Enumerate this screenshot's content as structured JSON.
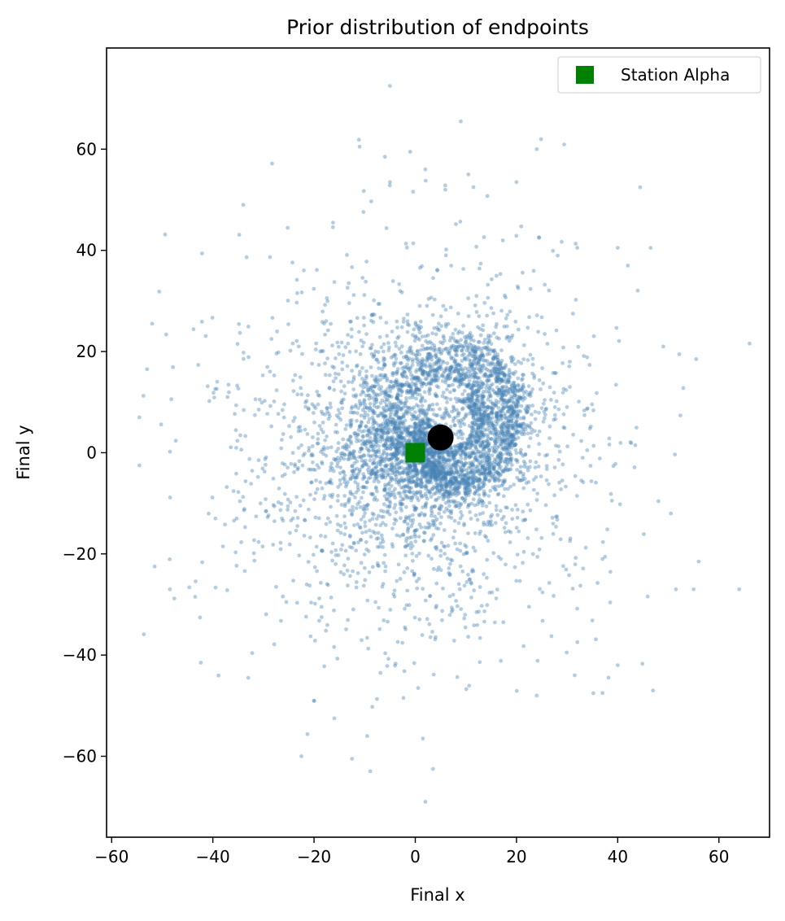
{
  "chart_data": {
    "type": "scatter",
    "title": "Prior distribution of endpoints",
    "xlabel": "Final x",
    "ylabel": "Final y",
    "xlim": [
      -61,
      70
    ],
    "ylim": [
      -76,
      80
    ],
    "xticks": [
      -60,
      -40,
      -20,
      0,
      20,
      40,
      60
    ],
    "yticks": [
      -60,
      -40,
      -20,
      0,
      20,
      40,
      60
    ],
    "xtick_labels": [
      "−60",
      "−40",
      "−20",
      "0",
      "20",
      "40",
      "60"
    ],
    "ytick_labels": [
      "−60",
      "−40",
      "−20",
      "0",
      "20",
      "40",
      "60"
    ],
    "grid": false,
    "legend": {
      "placement": "top-right",
      "entries": [
        {
          "label": "Station Alpha",
          "marker": "square",
          "color": "#008000"
        }
      ]
    },
    "series": [
      {
        "kind": "cloud",
        "color": "#4682b4",
        "opacity": 0.4,
        "description_points_sample": [
          [
            -5,
            72.5
          ],
          [
            9,
            65.5
          ],
          [
            -11,
            60.5
          ],
          [
            24,
            60
          ],
          [
            -1,
            59.5
          ],
          [
            -6,
            58.5
          ],
          [
            2,
            56
          ],
          [
            -34,
            49
          ],
          [
            -5,
            53.5
          ],
          [
            11.5,
            52.5
          ],
          [
            20,
            53.5
          ],
          [
            10.5,
            55
          ],
          [
            -53,
            16.5
          ],
          [
            -54.5,
            7
          ],
          [
            -54.5,
            -2.5
          ],
          [
            -52,
            25.5
          ],
          [
            -51.5,
            -22.5
          ],
          [
            -48.5,
            -27
          ],
          [
            -43.5,
            -28.5
          ],
          [
            -33,
            -44.5
          ],
          [
            -22.5,
            -60
          ],
          [
            -12.5,
            -60.5
          ],
          [
            -9.5,
            -56
          ],
          [
            1.5,
            -56.5
          ],
          [
            3.5,
            -62.5
          ],
          [
            2,
            -69
          ],
          [
            -16,
            -52.5
          ],
          [
            -20,
            -49
          ],
          [
            24,
            -48
          ],
          [
            37,
            -47.5
          ],
          [
            40,
            -42
          ],
          [
            31.5,
            -44
          ],
          [
            55,
            -27
          ],
          [
            64,
            -27
          ],
          [
            51.5,
            -27
          ],
          [
            56,
            -21.5
          ],
          [
            50.5,
            -12
          ],
          [
            55.5,
            18.5
          ],
          [
            49,
            21
          ],
          [
            46.5,
            40.5
          ],
          [
            40,
            40.5
          ],
          [
            24.5,
            42.5
          ],
          [
            32,
            40.5
          ],
          [
            42,
            37
          ]
        ],
        "cluster_centers": [
          [
            -10,
            0
          ],
          [
            13,
            3
          ],
          [
            5,
            3
          ]
        ],
        "approx_spread": 20,
        "approx_count": 4000
      },
      {
        "name": "Station Alpha",
        "kind": "marker",
        "marker": "square",
        "color": "#008000",
        "x": 0,
        "y": 0
      },
      {
        "kind": "marker",
        "marker": "circle",
        "color": "#000000",
        "x": 5,
        "y": 3
      }
    ]
  }
}
